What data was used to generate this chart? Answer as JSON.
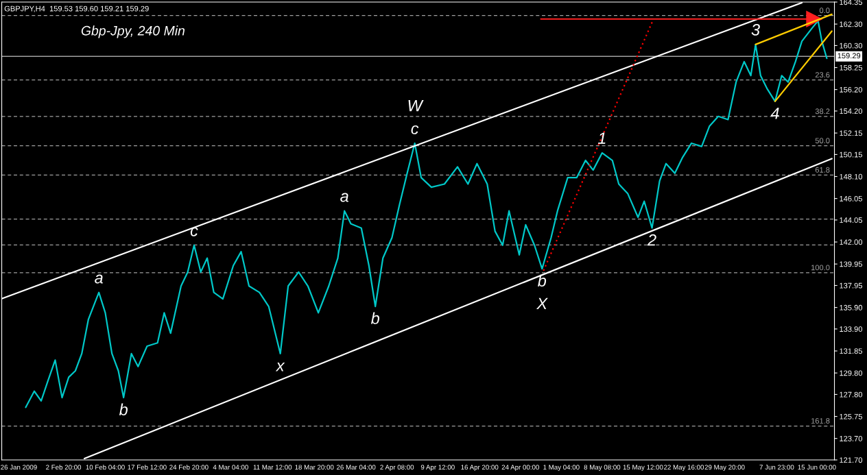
{
  "chart_data": {
    "type": "line",
    "title": "GBPJPY,H4  159.53 159.60 159.21 159.29",
    "subtitle": "Gbp-Jpy, 240 Min",
    "xlim": [
      "2009-01-23T00:00",
      "2009-06-18T02:00"
    ],
    "xticks": [
      {
        "value": "2009-01-26T00:00",
        "label": "26 Jan 2009"
      },
      {
        "value": "2009-02-02T20:00",
        "label": "2 Feb 20:00"
      },
      {
        "value": "2009-02-10T04:00",
        "label": "10 Feb 04:00"
      },
      {
        "value": "2009-02-17T12:00",
        "label": "17 Feb 12:00"
      },
      {
        "value": "2009-02-24T20:00",
        "label": "24 Feb 20:00"
      },
      {
        "value": "2009-03-04T04:00",
        "label": "4 Mar 04:00"
      },
      {
        "value": "2009-03-11T12:00",
        "label": "11 Mar 12:00"
      },
      {
        "value": "2009-03-18T20:00",
        "label": "18 Mar 20:00"
      },
      {
        "value": "2009-03-26T04:00",
        "label": "26 Mar 04:00"
      },
      {
        "value": "2009-04-02T08:00",
        "label": "2 Apr 08:00"
      },
      {
        "value": "2009-04-09T12:00",
        "label": "9 Apr 12:00"
      },
      {
        "value": "2009-04-16T20:00",
        "label": "16 Apr 20:00"
      },
      {
        "value": "2009-04-24T00:00",
        "label": "24 Apr 00:00"
      },
      {
        "value": "2009-05-01T04:00",
        "label": "1 May 04:00"
      },
      {
        "value": "2009-05-08T08:00",
        "label": "8 May 08:00"
      },
      {
        "value": "2009-05-15T12:00",
        "label": "15 May 12:00"
      },
      {
        "value": "2009-05-22T16:00",
        "label": "22 May 16:00"
      },
      {
        "value": "2009-05-29T20:00",
        "label": "29 May 20:00"
      },
      {
        "value": "2009-06-07T23:00",
        "label": "7 Jun 23:00"
      },
      {
        "value": "2009-06-15T00:00",
        "label": "15 Jun 00:00"
      }
    ],
    "ylim": [
      121.7,
      164.35
    ],
    "yticks": [
      {
        "value": 121.7,
        "label": "121.70"
      },
      {
        "value": 123.7,
        "label": "123.70"
      },
      125.75,
      {
        "value": 127.8,
        "label": "127.80"
      },
      {
        "value": 129.8,
        "label": "129.80"
      },
      131.85,
      {
        "value": 133.9,
        "label": "133.90"
      },
      {
        "value": 135.9,
        "label": "135.90"
      },
      137.95,
      139.95,
      {
        "value": 142.0,
        "label": "142.00"
      },
      144.05,
      146.05,
      {
        "value": 148.1,
        "label": "148.10"
      },
      150.15,
      152.15,
      {
        "value": 154.2,
        "label": "154.20"
      },
      {
        "value": 156.2,
        "label": "156.20"
      },
      158.25,
      {
        "value": 160.3,
        "label": "160.30"
      },
      {
        "value": 162.3,
        "label": "162.30"
      },
      164.35
    ],
    "series": [
      {
        "color": "#00c8c8",
        "x": [
          "2009-01-27T05:00",
          "2009-01-28T17:00",
          "2009-01-29T22:00",
          "2009-01-31T03:00",
          "2009-02-01T09:00",
          "2009-02-02T14:00",
          "2009-02-03T18:00",
          "2009-02-04T22:00",
          "2009-02-06T01:00",
          "2009-02-07T05:00",
          "2009-02-09T01:00",
          "2009-02-10T04:00",
          "2009-02-11T08:00",
          "2009-02-12T11:00",
          "2009-02-13T09:00",
          "2009-02-14T18:00",
          "2009-02-15T22:00",
          "2009-02-17T12:00",
          "2009-02-19T08:00",
          "2009-02-20T12:00",
          "2009-02-21T15:00",
          "2009-02-23T11:00",
          "2009-02-24T15:00",
          "2009-02-25T18:00",
          "2009-02-26T22:00",
          "2009-02-28T01:00",
          "2009-03-01T05:00",
          "2009-03-02T19:00",
          "2009-03-04T15:00",
          "2009-03-06T00:00",
          "2009-03-07T09:00",
          "2009-03-09T05:00",
          "2009-03-10T20:00",
          "2009-03-12T21:00",
          "2009-03-14T06:00",
          "2009-03-16T02:00",
          "2009-03-17T17:00",
          "2009-03-19T13:00",
          "2009-03-21T09:00",
          "2009-03-22T23:00",
          "2009-03-24T03:00",
          "2009-03-25T06:00",
          "2009-03-27T02:00",
          "2009-03-28T10:00",
          "2009-03-29T13:00",
          "2009-03-30T21:00",
          "2009-04-01T11:00",
          "2009-04-02T19:00",
          "2009-04-04T03:00",
          "2009-04-05T11:00",
          "2009-04-06T14:00",
          "2009-04-08T09:00",
          "2009-04-10T16:00",
          "2009-04-12T23:00",
          "2009-04-14T19:00",
          "2009-04-16T09:00",
          "2009-04-18T04:00",
          "2009-04-19T13:00",
          "2009-04-20T21:00",
          "2009-04-22T00:00",
          "2009-04-23T19:00",
          "2009-04-24T22:00",
          "2009-04-26T11:00",
          "2009-04-27T19:00",
          "2009-04-29T09:00",
          "2009-04-30T12:00",
          "2009-05-02T07:00",
          "2009-05-03T21:00",
          "2009-05-05T10:00",
          "2009-05-06T18:00",
          "2009-05-08T08:00",
          "2009-05-10T03:00",
          "2009-05-11T06:00",
          "2009-05-12T20:00",
          "2009-05-14T15:00",
          "2009-05-15T17:00",
          "2009-05-17T02:00",
          "2009-05-18T10:00",
          "2009-05-19T13:00",
          "2009-05-21T02:00",
          "2009-05-22T11:00",
          "2009-05-24T00:00",
          "2009-05-25T19:00",
          "2009-05-27T04:00",
          "2009-05-28T17:00",
          "2009-05-30T10:00",
          "2009-05-31T20:00",
          "2009-06-02T06:00",
          "2009-06-03T10:00",
          "2009-06-04T06:00",
          "2009-06-05T03:00",
          "2009-06-06T06:00",
          "2009-06-07T16:00",
          "2009-06-08T20:00",
          "2009-06-09T23:00",
          "2009-06-11T06:00",
          "2009-06-12T09:00",
          "2009-06-14T03:00",
          "2009-06-15T05:00",
          "2009-06-15T21:00",
          "2009-06-16T18:00"
        ],
        "values": [
          126.6,
          128.1,
          127.2,
          129.1,
          131.0,
          127.5,
          129.4,
          130.0,
          131.6,
          134.8,
          137.3,
          135.4,
          131.6,
          130.0,
          127.5,
          131.6,
          130.4,
          132.3,
          132.6,
          135.4,
          133.5,
          137.9,
          139.2,
          141.7,
          139.2,
          140.5,
          137.3,
          136.7,
          139.8,
          141.1,
          137.9,
          137.3,
          136.0,
          131.6,
          137.9,
          139.2,
          137.9,
          135.4,
          137.9,
          140.5,
          144.9,
          143.7,
          143.3,
          139.8,
          136.0,
          140.5,
          142.4,
          145.5,
          148.4,
          151.2,
          148.0,
          147.1,
          147.4,
          149.0,
          147.4,
          149.3,
          147.4,
          143.0,
          141.7,
          144.9,
          140.8,
          143.6,
          141.7,
          139.5,
          142.4,
          144.9,
          148.0,
          148.0,
          149.6,
          148.7,
          150.3,
          149.6,
          147.4,
          146.5,
          144.3,
          145.8,
          143.3,
          147.7,
          149.3,
          148.4,
          149.9,
          151.2,
          150.9,
          152.8,
          153.7,
          153.4,
          156.9,
          158.8,
          157.5,
          160.4,
          157.5,
          156.3,
          155.1,
          157.5,
          156.9,
          158.8,
          160.7,
          161.9,
          162.6,
          160.7,
          159.1
        ]
      },
      {
        "color": "#ffffff",
        "x": [
          "2009-01-23T00:00",
          "2009-06-12T09:00"
        ],
        "values": [
          136.72,
          164.29
        ]
      },
      {
        "color": "#ffffff",
        "x": [
          "2009-02-06T12:00",
          "2009-06-17T15:00"
        ],
        "values": [
          121.83,
          149.76
        ]
      },
      {
        "color": "#ff0000",
        "line_style": "dotted",
        "x": [
          "2009-04-28T01:00",
          "2009-05-17T07:00"
        ],
        "values": [
          139.33,
          162.71
        ]
      },
      {
        "color": "#ff2020",
        "marker": "triangle",
        "x": [
          "2009-04-27T14:00",
          "2009-06-14T13:00"
        ],
        "values": [
          162.77,
          162.77
        ]
      },
      {
        "color": "#ffcc00",
        "x": [
          "2009-06-04T06:00",
          "2009-06-17T15:00"
        ],
        "values": [
          160.4,
          163.21
        ]
      },
      {
        "color": "#ffcc00",
        "x": [
          "2009-06-07T16:00",
          "2009-06-17T15:00"
        ],
        "values": [
          155.1,
          161.64
        ]
      }
    ],
    "ref_lines": [
      {
        "axis": "y",
        "value": 159.29,
        "label": "159.29",
        "color": "#a0a0a0",
        "line_style": "solid"
      },
      {
        "axis": "y",
        "value": 163.09,
        "color": "#a0a0a0",
        "line_style": "dashed"
      },
      {
        "axis": "y",
        "value": 157.09,
        "color": "#a0a0a0",
        "line_style": "dashed"
      },
      {
        "axis": "y",
        "value": 153.7,
        "color": "#a0a0a0",
        "line_style": "dashed"
      },
      {
        "axis": "y",
        "value": 150.96,
        "color": "#a0a0a0",
        "line_style": "dashed"
      },
      {
        "axis": "y",
        "value": 148.24,
        "color": "#a0a0a0",
        "line_style": "dashed"
      },
      {
        "axis": "y",
        "value": 144.13,
        "color": "#a0a0a0",
        "line_style": "dashed"
      },
      {
        "axis": "y",
        "value": 141.73,
        "color": "#a0a0a0",
        "line_style": "dashed"
      },
      {
        "axis": "y",
        "value": 139.14,
        "color": "#a0a0a0",
        "line_style": "dashed"
      },
      {
        "axis": "y",
        "value": 124.86,
        "color": "#a0a0a0",
        "line_style": "dashed"
      }
    ],
    "annotations": [
      {
        "text": "a",
        "x": "2009-02-09T01:00",
        "y": 137.3
      },
      {
        "text": "b",
        "x": "2009-02-13T09:00",
        "y": 127.5
      },
      {
        "text": "c",
        "x": "2009-02-25T18:00",
        "y": 141.7
      },
      {
        "text": "x",
        "x": "2009-03-12T21:00",
        "y": 131.6
      },
      {
        "text": "a",
        "x": "2009-03-24T03:00",
        "y": 144.9
      },
      {
        "text": "b",
        "x": "2009-03-29T13:00",
        "y": 136.0
      },
      {
        "text": "c",
        "x": "2009-04-05T11:00",
        "y": 151.2
      },
      {
        "text": "W",
        "x": "2009-04-05T11:00",
        "y": 151.2
      },
      {
        "text": "b",
        "x": "2009-04-27T19:00",
        "y": 139.5
      },
      {
        "text": "X",
        "x": "2009-04-27T19:00",
        "y": 139.5
      },
      {
        "text": "1",
        "x": "2009-05-08T08:00",
        "y": 150.3
      },
      {
        "text": "2",
        "x": "2009-05-17T02:00",
        "y": 143.3
      },
      {
        "text": "3",
        "x": "2009-06-04T06:00",
        "y": 160.4
      },
      {
        "text": "4",
        "x": "2009-06-07T16:00",
        "y": 155.1
      },
      {
        "text": "0.0",
        "x": "2009-06-17T15:00",
        "y": 163.09
      },
      {
        "text": "23.6",
        "x": "2009-06-17T15:00",
        "y": 157.09
      },
      {
        "text": "38.2",
        "x": "2009-06-17T15:00",
        "y": 153.7
      },
      {
        "text": "50.0",
        "x": "2009-06-17T15:00",
        "y": 150.96
      },
      {
        "text": "61.8",
        "x": "2009-06-17T15:00",
        "y": 148.24
      },
      {
        "text": "100.0",
        "x": "2009-06-17T15:00",
        "y": 139.14
      },
      {
        "text": "161.8",
        "x": "2009-06-17T15:00",
        "y": 124.86
      }
    ]
  }
}
